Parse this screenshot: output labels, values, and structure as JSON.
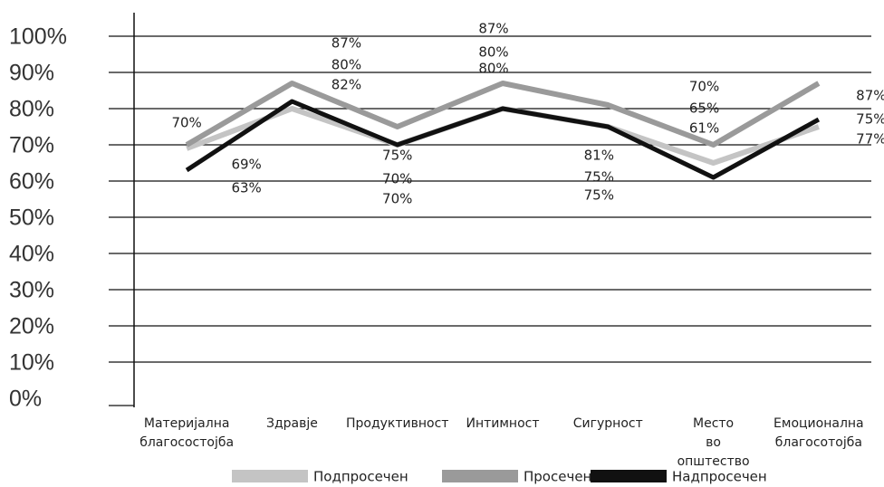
{
  "chart_data": {
    "type": "line",
    "categories": [
      "Материјална благосостојба",
      "Здравје",
      "Продуктивност",
      "Интимност",
      "Сигурност",
      "Место во општество",
      "Емоционална благосотојба"
    ],
    "series": [
      {
        "name": "Подпросечен",
        "color": "#c4c4c4",
        "values": [
          69,
          80,
          70,
          80,
          75,
          65,
          75
        ],
        "value_labels": [
          "69%",
          "80%",
          "70%",
          "80%",
          "75%",
          "65%",
          "75%"
        ]
      },
      {
        "name": "Просечен",
        "color": "#9a9a9a",
        "values": [
          70,
          87,
          75,
          87,
          81,
          70,
          87
        ],
        "value_labels": [
          "70%",
          "87%",
          "75%",
          "87%",
          "81%",
          "70%",
          "87%"
        ]
      },
      {
        "name": "Надпросечен",
        "color": "#111111",
        "values": [
          63,
          82,
          70,
          80,
          75,
          61,
          77
        ],
        "value_labels": [
          "63%",
          "82%",
          "70%",
          "80%",
          "75%",
          "61%",
          "77%"
        ]
      }
    ],
    "ylim": [
      0,
      100
    ],
    "yticks": [
      {
        "value": 0,
        "label": "0%"
      },
      {
        "value": 10,
        "label": "10%"
      },
      {
        "value": 20,
        "label": "20%"
      },
      {
        "value": 30,
        "label": "30%"
      },
      {
        "value": 40,
        "label": "40%"
      },
      {
        "value": 50,
        "label": "50%"
      },
      {
        "value": 60,
        "label": "60%"
      },
      {
        "value": 70,
        "label": "70%"
      },
      {
        "value": 80,
        "label": "80%"
      },
      {
        "value": 90,
        "label": "90%"
      },
      {
        "value": 100,
        "label": "100%"
      }
    ],
    "grid": true
  }
}
